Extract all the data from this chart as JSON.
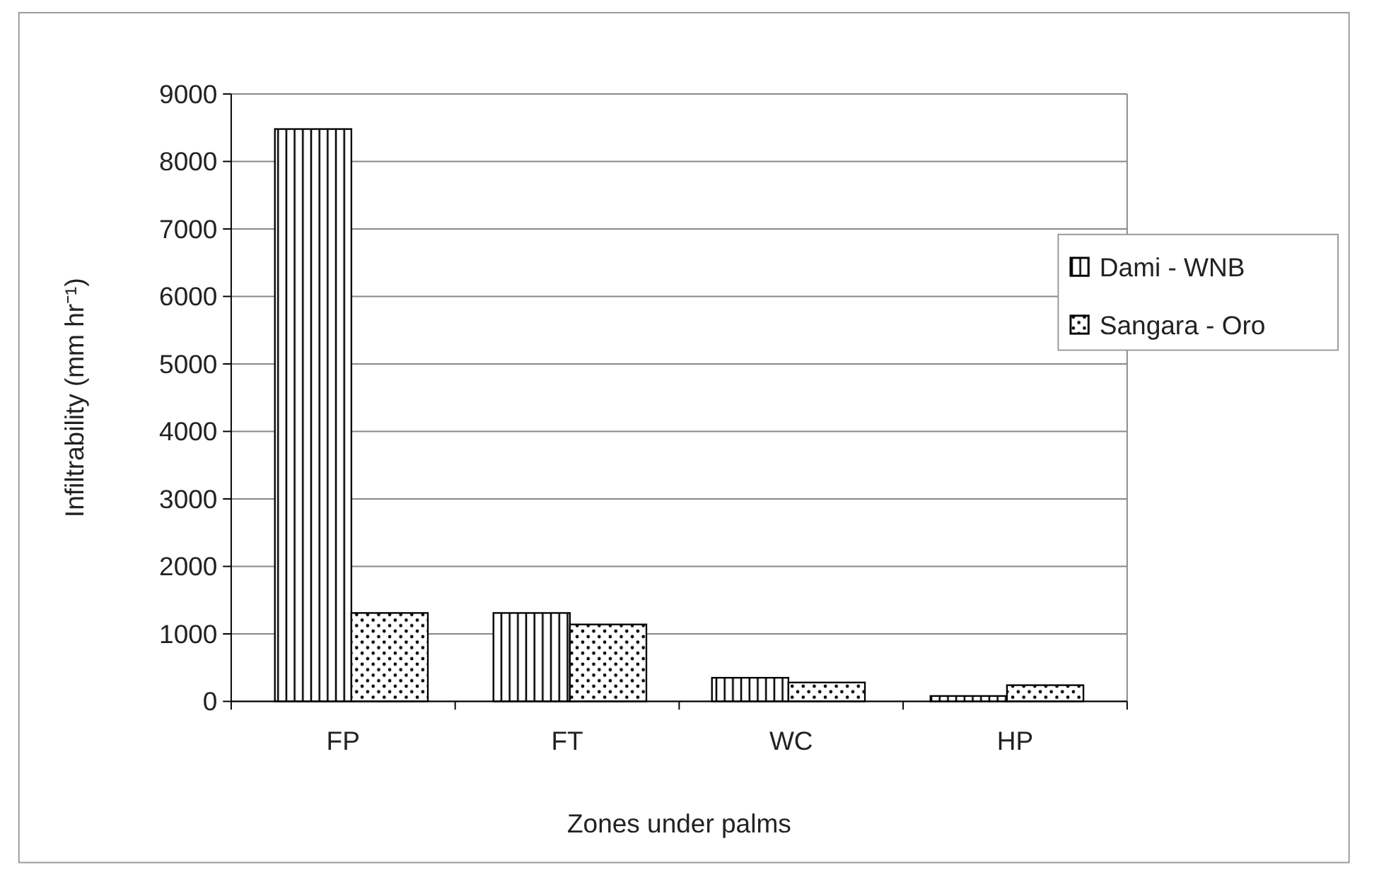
{
  "chart_data": {
    "type": "bar",
    "xlabel": "Zones under palms",
    "ylabel": "Infiltrability (mm hr⁻¹)",
    "categories": [
      "FP",
      "FT",
      "WC",
      "HP"
    ],
    "series": [
      {
        "name": "Dami - WNB",
        "color": "#000000",
        "values": [
          8480,
          1310,
          350,
          80
        ]
      },
      {
        "name": "Sangara - Oro",
        "color": "#000000",
        "values": [
          1310,
          1140,
          280,
          240
        ]
      }
    ],
    "ylim": [
      0,
      9000
    ],
    "yticks": [
      0,
      1000,
      2000,
      3000,
      4000,
      5000,
      6000,
      7000,
      8000,
      9000
    ],
    "grid": "y",
    "legend": "right"
  }
}
